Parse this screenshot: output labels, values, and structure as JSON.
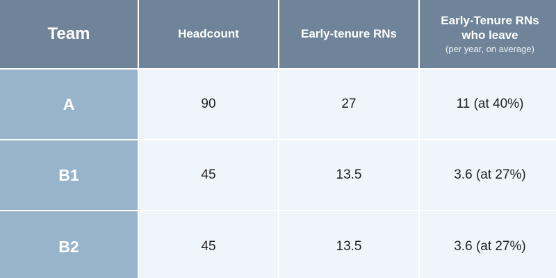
{
  "header": {
    "team": "Team",
    "headcount": "Headcount",
    "early_tenure": "Early-tenure RNs",
    "leave_line1": "Early-Tenure RNs",
    "leave_line2": "who leave",
    "leave_sub": "(per year, on average)"
  },
  "rows": [
    {
      "team": "A",
      "headcount": "90",
      "early_tenure": "27",
      "leave": "11 (at 40%)"
    },
    {
      "team": "B1",
      "headcount": "45",
      "early_tenure": "13.5",
      "leave": "3.6 (at 27%)"
    },
    {
      "team": "B2",
      "headcount": "45",
      "early_tenure": "13.5",
      "leave": "3.6 (at 27%)"
    }
  ],
  "colors": {
    "header_bg": "#6f8498",
    "row_header_bg": "#98b4cb",
    "cell_bg": "#eef6fb",
    "text_dark": "#1f1f1f",
    "text_light": "#ffffff"
  }
}
